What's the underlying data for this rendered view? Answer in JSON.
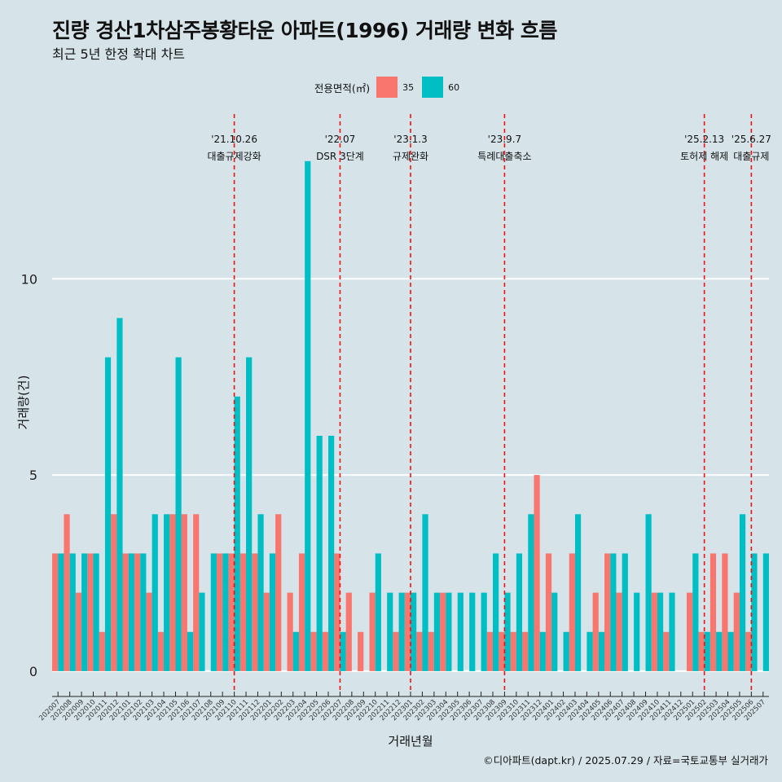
{
  "title": "진량 경산1차삼주봉황타운 아파트(1996) 거래량 변화 흐름",
  "subtitle": "최근 5년 한정 확대 차트",
  "caption": "©디아파트(dapt.kr) / 2025.07.29 / 자료=국토교통부 실거래가",
  "colors": {
    "background": "#d6e4ea",
    "series35": "#f8766d",
    "series60": "#00bfc4",
    "vline": "#ee1111",
    "grid": "#ffffff"
  },
  "chart_data": {
    "type": "bar",
    "title": "진량 경산1차삼주봉황타운 아파트(1996) 거래량 변화 흐름",
    "xlabel": "거래년월",
    "ylabel": "거래량(건)",
    "ylim": [
      -0.5,
      14.2
    ],
    "yticks": [
      0,
      5,
      10
    ],
    "legend": {
      "title": "전용면적(㎡)",
      "position": "top"
    },
    "categories": [
      "202007",
      "202008",
      "202009",
      "202010",
      "202011",
      "202012",
      "202101",
      "202102",
      "202103",
      "202104",
      "202105",
      "202106",
      "202107",
      "202108",
      "202109",
      "202110",
      "202111",
      "202112",
      "202201",
      "202202",
      "202203",
      "202204",
      "202205",
      "202206",
      "202207",
      "202208",
      "202209",
      "202210",
      "202211",
      "202212",
      "202301",
      "202302",
      "202303",
      "202304",
      "202305",
      "202306",
      "202307",
      "202308",
      "202309",
      "202310",
      "202311",
      "202312",
      "202401",
      "202402",
      "202403",
      "202404",
      "202405",
      "202406",
      "202407",
      "202408",
      "202409",
      "202410",
      "202411",
      "202412",
      "202501",
      "202502",
      "202503",
      "202504",
      "202505",
      "202506",
      "202507"
    ],
    "series": [
      {
        "name": "35",
        "values": [
          3,
          4,
          2,
          3,
          1,
          4,
          3,
          3,
          2,
          1,
          4,
          4,
          4,
          0,
          3,
          3,
          3,
          3,
          2,
          4,
          2,
          3,
          1,
          1,
          3,
          2,
          1,
          2,
          0,
          1,
          2,
          1,
          1,
          2,
          0,
          0,
          0,
          1,
          1,
          1,
          1,
          5,
          3,
          0,
          3,
          0,
          2,
          3,
          2,
          0,
          0,
          2,
          1,
          0,
          2,
          1,
          3,
          3,
          2,
          1,
          0
        ]
      },
      {
        "name": "60",
        "values": [
          3,
          3,
          3,
          3,
          8,
          9,
          3,
          3,
          4,
          4,
          8,
          1,
          2,
          3,
          3,
          7,
          8,
          4,
          3,
          0,
          1,
          13,
          6,
          6,
          1,
          0,
          0,
          3,
          2,
          2,
          2,
          4,
          2,
          2,
          2,
          2,
          2,
          3,
          2,
          3,
          4,
          1,
          2,
          1,
          4,
          1,
          1,
          3,
          3,
          2,
          4,
          2,
          2,
          0,
          3,
          1,
          1,
          1,
          4,
          3,
          3
        ]
      }
    ],
    "annotations": [
      {
        "x": "202110",
        "date": "'21.10.26",
        "label": "대출규제강화"
      },
      {
        "x": "202207",
        "date": "'22.07",
        "label": "DSR 3단계"
      },
      {
        "x": "202301",
        "date": "'23.1.3",
        "label": "규제완화"
      },
      {
        "x": "202309",
        "date": "'23.9.7",
        "label": "특례대출축소"
      },
      {
        "x": "202502",
        "date": "'25.2.13",
        "label": "토허제 해제"
      },
      {
        "x": "202506",
        "date": "'25.6.27",
        "label": "대출규제"
      }
    ]
  }
}
